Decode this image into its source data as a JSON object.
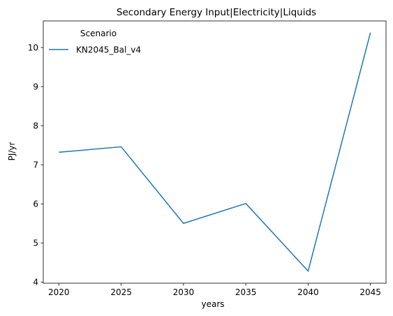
{
  "chart_data": {
    "type": "line",
    "title": "Secondary Energy Input|Electricity|Liquids",
    "xlabel": "years",
    "ylabel": "PJ/yr",
    "x": [
      2020,
      2025,
      2030,
      2035,
      2040,
      2045
    ],
    "xticks": [
      "2020",
      "2025",
      "2030",
      "2035",
      "2040",
      "2045"
    ],
    "yticks": [
      "4",
      "5",
      "6",
      "7",
      "8",
      "9",
      "10"
    ],
    "xlim": [
      2018.75,
      2046.25
    ],
    "ylim": [
      3.97,
      10.68
    ],
    "grid": false,
    "legend": {
      "title": "Scenario",
      "position": "top-left"
    },
    "series": [
      {
        "name": "KN2045_Bal_v4",
        "color": "#1f77b4",
        "values": [
          7.32,
          7.46,
          5.5,
          6.01,
          4.28,
          10.38
        ]
      }
    ]
  }
}
